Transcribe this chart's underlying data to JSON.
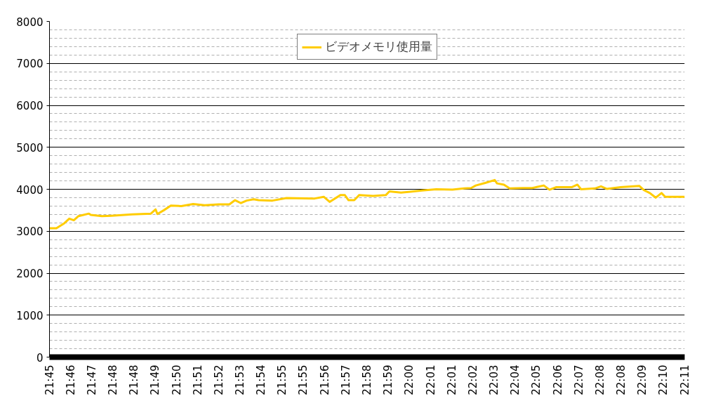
{
  "chart_data": {
    "type": "line",
    "x": [
      21.75,
      21.7547,
      21.7601,
      21.7635,
      21.7666,
      21.7698,
      21.7769,
      21.7782,
      21.7857,
      21.7921,
      21.8065,
      21.8192,
      21.8224,
      21.8236,
      21.828,
      21.8328,
      21.8399,
      21.848,
      21.8559,
      21.8654,
      21.8727,
      21.8766,
      21.8806,
      21.8845,
      21.8893,
      21.8926,
      21.9021,
      21.9117,
      21.9309,
      21.9372,
      21.9411,
      21.9484,
      21.9515,
      21.954,
      21.9579,
      21.9612,
      21.9707,
      21.9794,
      21.9819,
      21.9898,
      21.9962,
      22.0041,
      22.0138,
      22.0249,
      22.0329,
      22.0376,
      22.0408,
      22.0472,
      22.0537,
      22.0553,
      22.06,
      22.0639,
      22.0727,
      22.0792,
      22.0872,
      22.0911,
      22.0958,
      22.1062,
      22.1101,
      22.1126,
      22.1221,
      22.1262,
      22.1301,
      22.1396,
      22.1523,
      22.1555,
      22.1595,
      22.1636,
      22.1675,
      22.17,
      22.1833
    ],
    "series": [
      {
        "name": "ビデオメモリ使用量",
        "color": "#ffcc00",
        "values": [
          3070,
          3070,
          3190,
          3300,
          3260,
          3360,
          3420,
          3390,
          3360,
          3370,
          3400,
          3420,
          3520,
          3410,
          3500,
          3610,
          3600,
          3650,
          3620,
          3640,
          3640,
          3740,
          3670,
          3730,
          3760,
          3740,
          3730,
          3790,
          3780,
          3820,
          3700,
          3860,
          3860,
          3740,
          3740,
          3860,
          3840,
          3860,
          3950,
          3920,
          3940,
          3970,
          4000,
          3990,
          4020,
          4030,
          4090,
          4150,
          4220,
          4140,
          4110,
          4020,
          4030,
          4030,
          4090,
          3990,
          4050,
          4050,
          4110,
          4000,
          4020,
          4070,
          4010,
          4050,
          4080,
          3980,
          3910,
          3800,
          3910,
          3820,
          3820
        ]
      }
    ],
    "xlim": [
      21.75,
      22.1833
    ],
    "xticks": [
      {
        "value": 21.75,
        "label": "21:45"
      },
      {
        "value": 21.7644,
        "label": "21:46"
      },
      {
        "value": 21.7789,
        "label": "21:47"
      },
      {
        "value": 21.7933,
        "label": "21:48"
      },
      {
        "value": 21.8078,
        "label": "21:48"
      },
      {
        "value": 21.8222,
        "label": "21:49"
      },
      {
        "value": 21.8367,
        "label": "21:50"
      },
      {
        "value": 21.8511,
        "label": "21:51"
      },
      {
        "value": 21.8656,
        "label": "21:52"
      },
      {
        "value": 21.88,
        "label": "21:53"
      },
      {
        "value": 21.8944,
        "label": "21:54"
      },
      {
        "value": 21.9089,
        "label": "21:55"
      },
      {
        "value": 21.9233,
        "label": "21:55"
      },
      {
        "value": 21.9378,
        "label": "21:56"
      },
      {
        "value": 21.9522,
        "label": "21:57"
      },
      {
        "value": 21.9667,
        "label": "21:58"
      },
      {
        "value": 21.9811,
        "label": "21:59"
      },
      {
        "value": 21.9956,
        "label": "22:00"
      },
      {
        "value": 22.01,
        "label": "22:01"
      },
      {
        "value": 22.0244,
        "label": "22:01"
      },
      {
        "value": 22.0389,
        "label": "22:02"
      },
      {
        "value": 22.0533,
        "label": "22:03"
      },
      {
        "value": 22.0678,
        "label": "22:04"
      },
      {
        "value": 22.0822,
        "label": "22:05"
      },
      {
        "value": 22.0967,
        "label": "22:06"
      },
      {
        "value": 22.1111,
        "label": "22:07"
      },
      {
        "value": 22.1256,
        "label": "22:08"
      },
      {
        "value": 22.14,
        "label": "22:08"
      },
      {
        "value": 22.1544,
        "label": "22:09"
      },
      {
        "value": 22.1689,
        "label": "22:10"
      },
      {
        "value": 22.1833,
        "label": "22:11"
      }
    ],
    "ylim": [
      0,
      8000
    ],
    "yticks": [
      0,
      1000,
      2000,
      3000,
      4000,
      5000,
      6000,
      7000,
      8000
    ],
    "grid": "y",
    "legend": "top",
    "marker": "none",
    "line_style": "solid"
  }
}
